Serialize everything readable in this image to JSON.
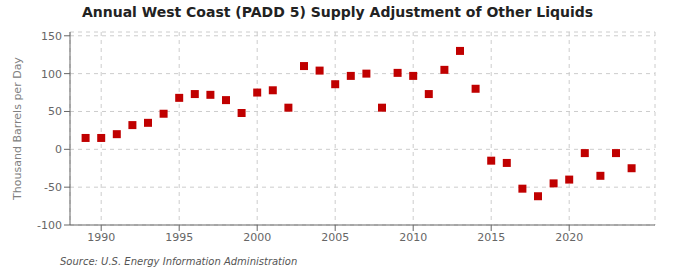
{
  "chart_data": {
    "type": "scatter",
    "title": "Annual West Coast (PADD 5) Supply Adjustment of Other Liquids",
    "ylabel": "Thousand Barrels per Day",
    "annotations": [
      "Source: U.S. Energy Information Administration"
    ],
    "x": [
      1989,
      1990,
      1991,
      1992,
      1993,
      1994,
      1995,
      1996,
      1997,
      1998,
      1999,
      2000,
      2001,
      2002,
      2003,
      2004,
      2005,
      2006,
      2007,
      2008,
      2009,
      2010,
      2011,
      2012,
      2013,
      2014,
      2015,
      2016,
      2017,
      2018,
      2019,
      2020,
      2021,
      2022,
      2023,
      2024
    ],
    "values": [
      15,
      15,
      20,
      32,
      35,
      47,
      68,
      73,
      72,
      65,
      48,
      75,
      78,
      55,
      110,
      104,
      86,
      97,
      100,
      55,
      101,
      97,
      73,
      105,
      130,
      80,
      -15,
      -18,
      -52,
      -62,
      -45,
      -40,
      -5,
      -35,
      -5,
      -25
    ],
    "color": "#c00000",
    "marker": "square",
    "xlim": [
      1988.0,
      2025.5
    ],
    "ylim": [
      -100,
      155
    ],
    "xticks": [
      1990,
      1995,
      2000,
      2005,
      2010,
      2015,
      2020
    ],
    "yticks": [
      -100,
      -50,
      0,
      50,
      100,
      150
    ],
    "grid": true
  }
}
